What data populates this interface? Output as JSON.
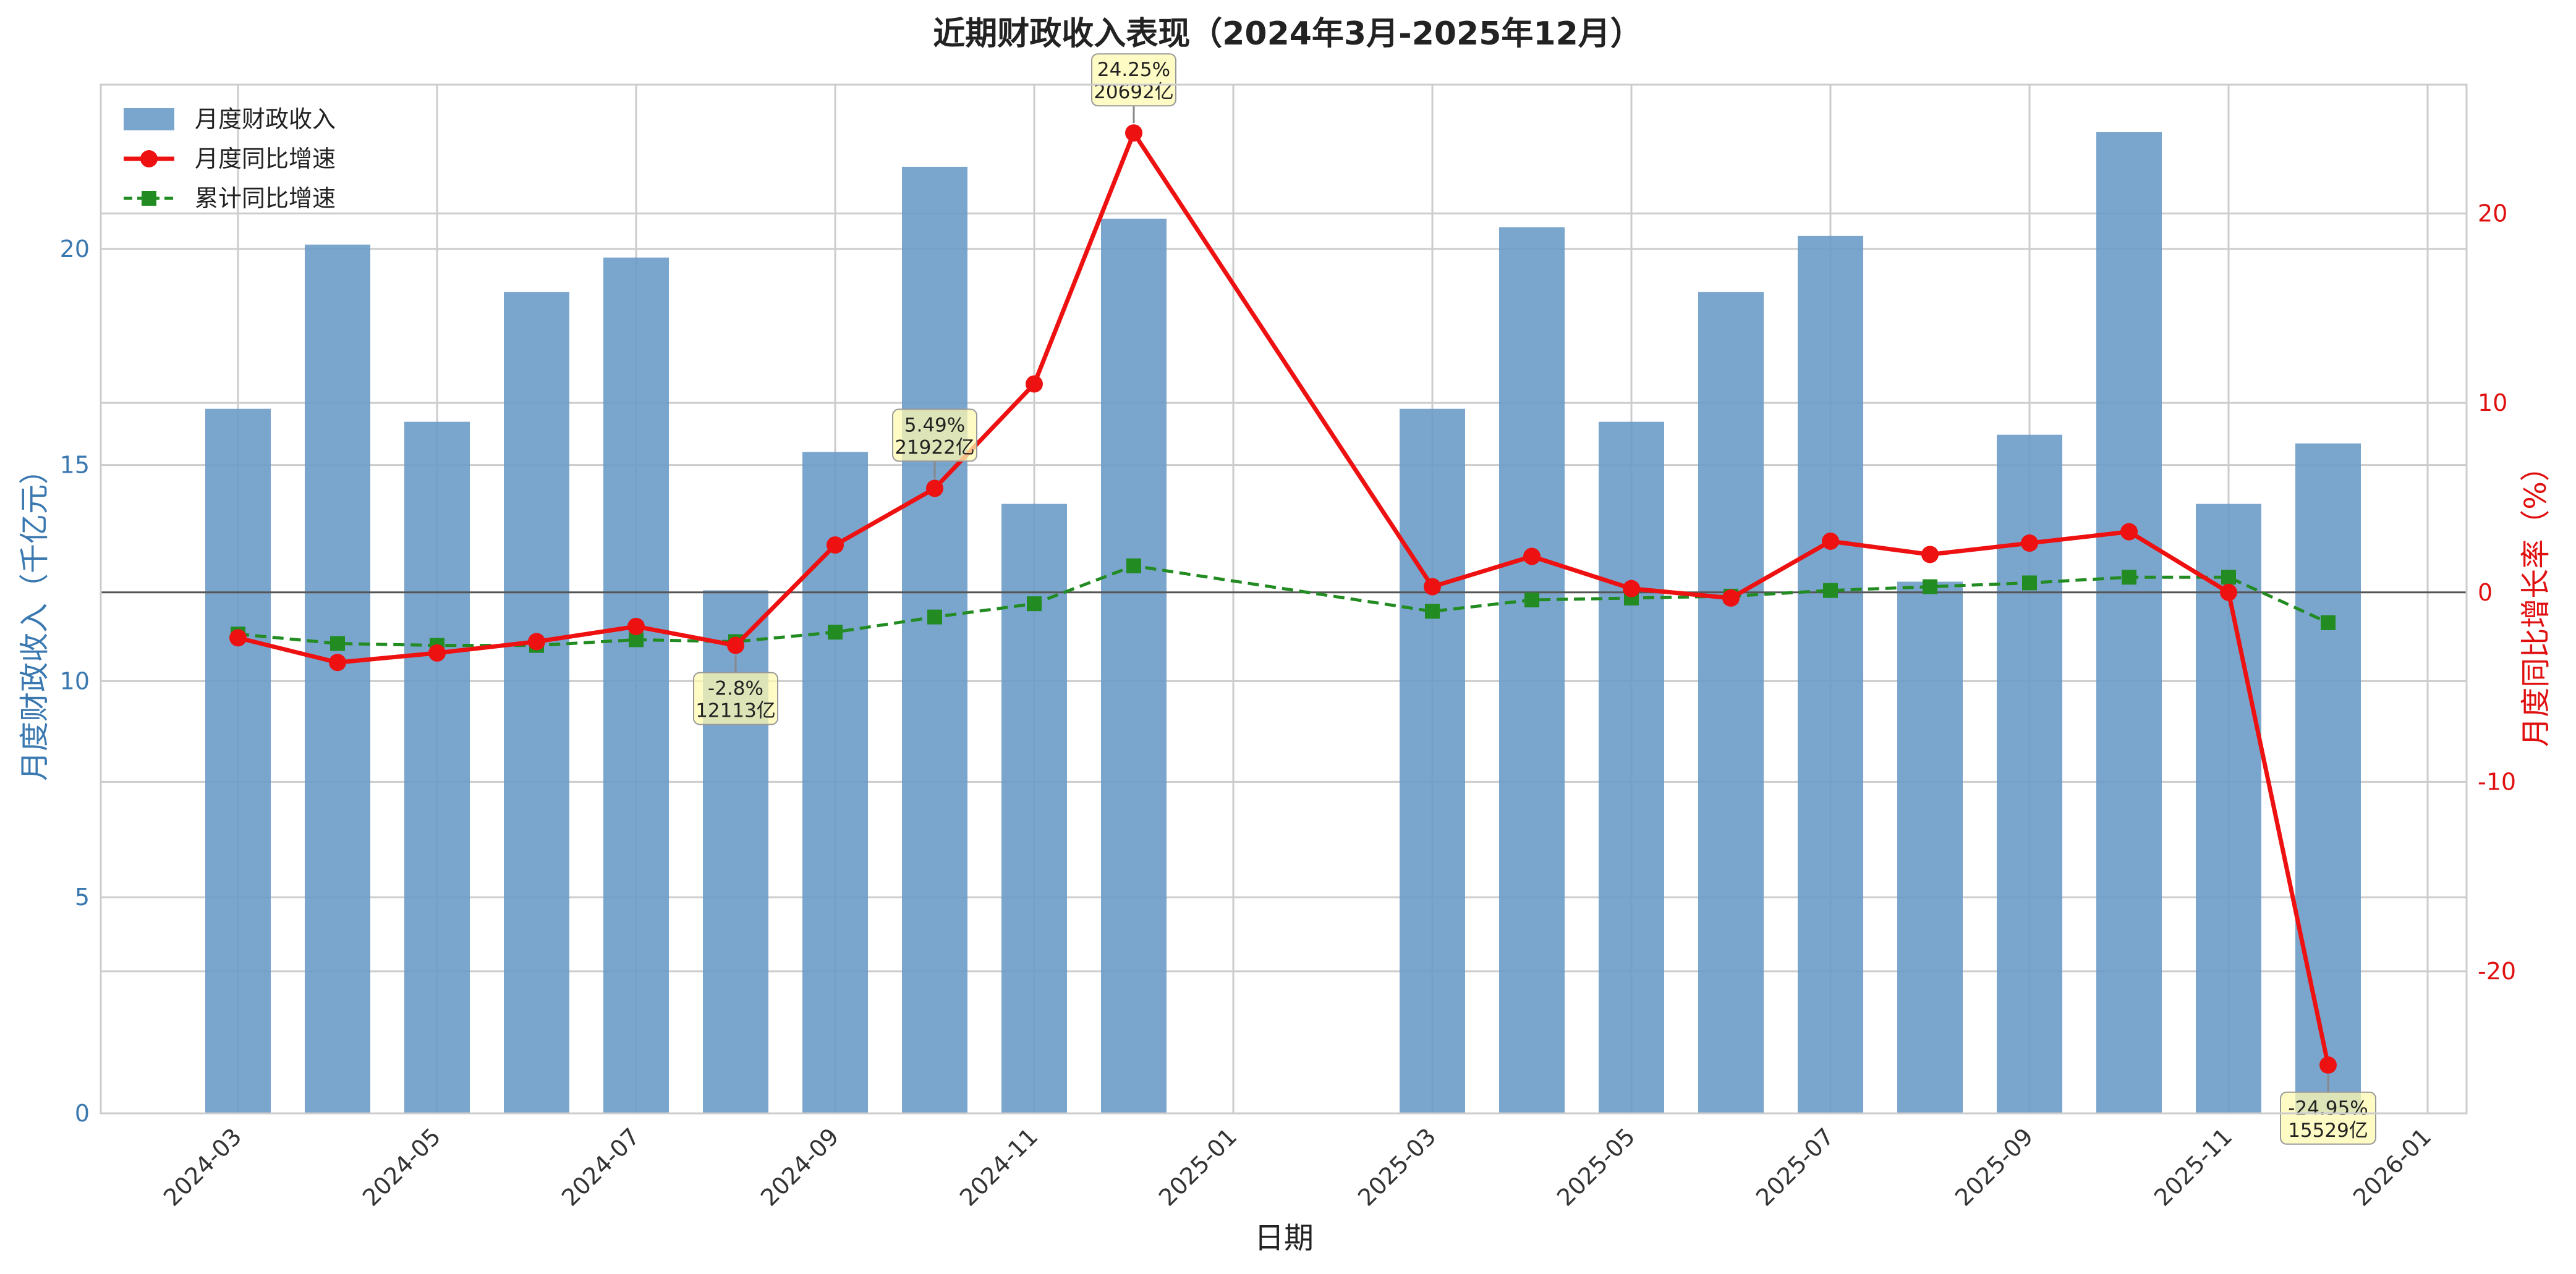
{
  "chart_data": {
    "type": "bar+line",
    "title": "近期财政收入表现（2024年3月-2025年12月）",
    "xlabel": "日期",
    "ylabel_left": "月度财政收入（千亿元）",
    "ylabel_right": "月度同比增长率（%）",
    "ylim_left": [
      0,
      23.8
    ],
    "ylim_right": [
      -27.5,
      26.8
    ],
    "yticks_left": [
      0,
      5,
      10,
      15,
      20
    ],
    "yticks_right": [
      -20,
      -10,
      0,
      10,
      20
    ],
    "grid": true,
    "legend_position": "top-left",
    "x_tick_labels": [
      "2024-03",
      "2024-05",
      "2024-07",
      "2024-09",
      "2024-11",
      "2025-01",
      "2025-03",
      "2025-05",
      "2025-07",
      "2025-09",
      "2025-11",
      "2026-01"
    ],
    "dates": [
      "2024-03",
      "2024-04",
      "2024-05",
      "2024-06",
      "2024-07",
      "2024-08",
      "2024-09",
      "2024-10",
      "2024-11",
      "2024-12",
      "2025-03",
      "2025-04",
      "2025-05",
      "2025-06",
      "2025-07",
      "2025-08",
      "2025-09",
      "2025-10",
      "2025-11",
      "2025-12"
    ],
    "series": [
      {
        "name": "月度财政收入",
        "type": "bar",
        "axis": "left",
        "color": "#6b9bc7",
        "values": [
          16.3,
          20.1,
          16.0,
          19.0,
          19.8,
          12.1,
          15.3,
          21.9,
          14.1,
          20.7,
          16.3,
          20.5,
          16.0,
          19.0,
          20.3,
          12.3,
          15.7,
          22.7,
          14.1,
          15.5
        ]
      },
      {
        "name": "月度同比增速",
        "type": "line",
        "axis": "right",
        "color": "#ee1111",
        "values": [
          -2.4,
          -3.7,
          -3.2,
          -2.6,
          -1.8,
          -2.8,
          2.5,
          5.49,
          11.0,
          24.25,
          0.3,
          1.9,
          0.2,
          -0.3,
          2.7,
          2.0,
          2.6,
          3.2,
          0.0,
          -24.95
        ]
      },
      {
        "name": "累计同比增速",
        "type": "line",
        "axis": "right",
        "color": "#228b22",
        "values": [
          -2.2,
          -2.7,
          -2.8,
          -2.8,
          -2.5,
          -2.6,
          -2.1,
          -1.3,
          -0.6,
          1.4,
          -1.0,
          -0.4,
          -0.3,
          -0.2,
          0.1,
          0.3,
          0.5,
          0.8,
          0.8,
          -1.6
        ]
      }
    ],
    "annotations": [
      {
        "index": 9,
        "line1": "24.25%",
        "line2": "20692亿",
        "placement": "above"
      },
      {
        "index": 7,
        "line1": "5.49%",
        "line2": "21922亿",
        "placement": "above"
      },
      {
        "index": 5,
        "line1": "-2.8%",
        "line2": "12113亿",
        "placement": "below"
      },
      {
        "index": 19,
        "line1": "-24.95%",
        "line2": "15529亿",
        "placement": "below"
      }
    ],
    "colors": {
      "left_axis": "#3a78b0",
      "right_axis": "#e01010",
      "zero_line": "#555555",
      "grid": "#cccccc",
      "annotation_fill": "#fff9b0"
    }
  }
}
